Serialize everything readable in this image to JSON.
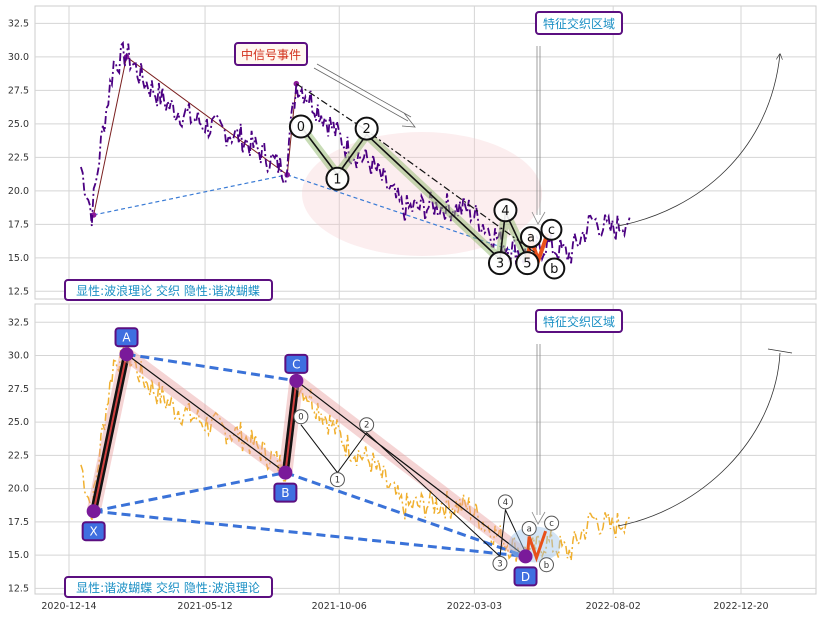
{
  "chart_data": [
    {
      "type": "line",
      "panel": "top",
      "x_ticks": [
        "2020-12-14",
        "2021-05-12",
        "2021-10-06",
        "2022-03-03",
        "2022-08-02",
        "2022-12-20"
      ],
      "y_ticks": [
        12.5,
        15.0,
        17.5,
        20.0,
        22.5,
        25.0,
        27.5,
        30.0,
        32.5
      ],
      "ylim": [
        12.0,
        33.8
      ],
      "grid": true,
      "price_color": "#4b0082",
      "price_keypoints": [
        [
          "2020-12-27",
          21.8
        ],
        [
          "2021-01-08",
          18.3
        ],
        [
          "2021-01-20",
          24.5
        ],
        [
          "2021-02-01",
          29.5
        ],
        [
          "2021-02-15",
          30.2
        ],
        [
          "2021-03-05",
          28.3
        ],
        [
          "2021-04-05",
          26.2
        ],
        [
          "2021-05-10",
          25.0
        ],
        [
          "2021-06-20",
          24.0
        ],
        [
          "2021-07-10",
          23.0
        ],
        [
          "2021-08-08",
          21.5
        ],
        [
          "2021-08-20",
          28.0
        ],
        [
          "2021-08-28",
          27.5
        ],
        [
          "2021-09-20",
          25.5
        ],
        [
          "2021-10-15",
          23.2
        ],
        [
          "2021-11-10",
          22.0
        ],
        [
          "2021-12-15",
          18.6
        ],
        [
          "2022-01-20",
          18.9
        ],
        [
          "2022-02-25",
          18.6
        ],
        [
          "2022-03-20",
          17.0
        ],
        [
          "2022-04-10",
          15.8
        ],
        [
          "2022-05-01",
          15.1
        ],
        [
          "2022-05-20",
          16.0
        ],
        [
          "2022-06-15",
          15.2
        ],
        [
          "2022-07-10",
          17.8
        ],
        [
          "2022-08-01",
          17.0
        ],
        [
          "2022-08-20",
          18.0
        ]
      ],
      "elliott_points": [
        {
          "label": "0",
          "date": "2021-08-25",
          "value": 24.8
        },
        {
          "label": "1",
          "date": "2021-10-04",
          "value": 21.2
        },
        {
          "label": "2",
          "date": "2021-11-05",
          "value": 24.2
        },
        {
          "label": "3",
          "date": "2022-03-31",
          "value": 14.9
        },
        {
          "label": "4",
          "date": "2022-04-06",
          "value": 18.4
        },
        {
          "label": "5",
          "date": "2022-04-30",
          "value": 14.9
        },
        {
          "label": "a",
          "date": "2022-05-04",
          "value": 16.4
        },
        {
          "label": "b",
          "date": "2022-05-12",
          "value": 14.8
        },
        {
          "label": "c",
          "date": "2022-05-22",
          "value": 16.8
        }
      ],
      "harmonic_lines": [
        {
          "from": [
            "2021-01-10",
            18.2
          ],
          "to": [
            "2021-02-15",
            30.0
          ]
        },
        {
          "from": [
            "2021-02-15",
            30.0
          ],
          "to": [
            "2021-08-10",
            21.2
          ]
        },
        {
          "from": [
            "2021-08-10",
            21.2
          ],
          "to": [
            "2021-08-20",
            28.0
          ]
        }
      ],
      "labels": {
        "event": "中信号事件",
        "feature_zone": "特征交织区域",
        "overlay": "显性:波浪理论 交织 隐性:谐波蝴蝶"
      }
    },
    {
      "type": "line",
      "panel": "bottom",
      "x_ticks": [
        "2020-12-14",
        "2021-05-12",
        "2021-10-06",
        "2022-03-03",
        "2022-08-02",
        "2022-12-20"
      ],
      "y_ticks": [
        12.5,
        15.0,
        17.5,
        20.0,
        22.5,
        25.0,
        27.5,
        30.0,
        32.5
      ],
      "ylim": [
        12.0,
        33.8
      ],
      "grid": true,
      "price_color": "#f0b030",
      "harmonic_points": [
        {
          "label": "X",
          "date": "2021-01-10",
          "value": 18.3
        },
        {
          "label": "A",
          "date": "2021-02-15",
          "value": 30.1
        },
        {
          "label": "B",
          "date": "2021-08-08",
          "value": 21.2
        },
        {
          "label": "C",
          "date": "2021-08-20",
          "value": 28.1
        },
        {
          "label": "D",
          "date": "2022-04-28",
          "value": 14.9
        }
      ],
      "elliott_points": [
        {
          "label": "0",
          "date": "2021-08-25",
          "value": 24.8
        },
        {
          "label": "1",
          "date": "2021-10-04",
          "value": 21.2
        },
        {
          "label": "2",
          "date": "2021-11-05",
          "value": 24.2
        },
        {
          "label": "3",
          "date": "2022-03-31",
          "value": 14.9
        },
        {
          "label": "4",
          "date": "2022-04-06",
          "value": 18.4
        },
        {
          "label": "a",
          "date": "2022-05-02",
          "value": 16.4
        },
        {
          "label": "b",
          "date": "2022-05-10",
          "value": 14.8
        },
        {
          "label": "c",
          "date": "2022-05-20",
          "value": 16.8
        }
      ],
      "labels": {
        "feature_zone": "特征交织区域",
        "overlay": "显性:谐波蝴蝶 交织 隐性:波浪理论"
      }
    }
  ]
}
